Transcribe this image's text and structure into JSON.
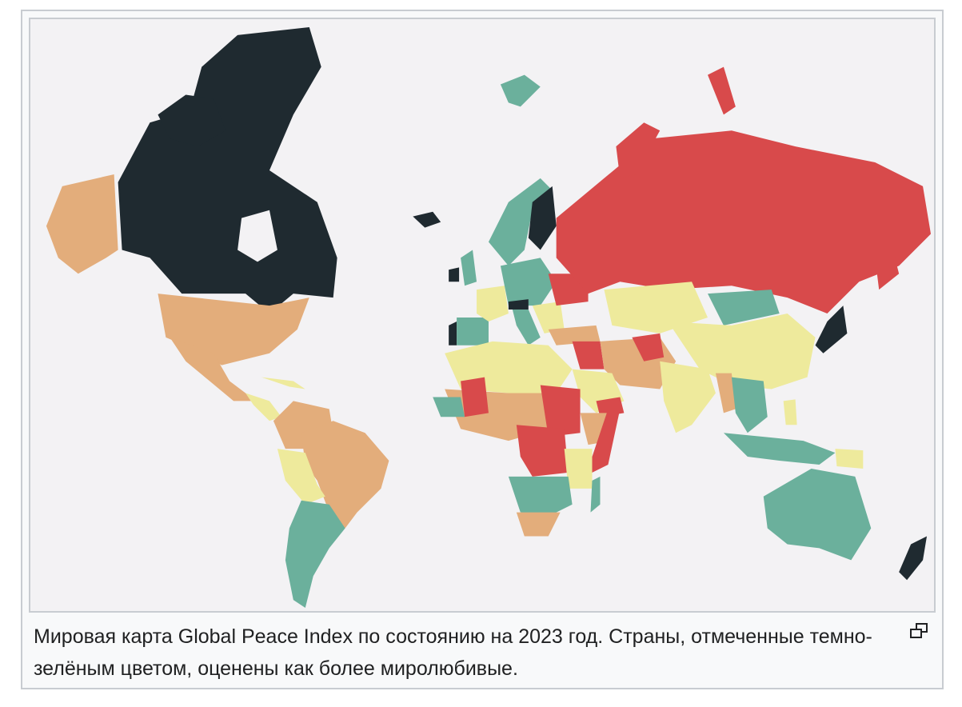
{
  "figure": {
    "caption": "Мировая карта Global Peace Index по состоянию на 2023 год. Страны, отмеченные темно-зелёным цветом, оценены как более миролюбивые.",
    "enlarge_icon": "enlarge-icon"
  },
  "map": {
    "projection": "world",
    "ocean_color": "#f3f2f4",
    "palette": {
      "very_high": "#1f2a30",
      "high": "#6bb09c",
      "medium": "#eeea9c",
      "low": "#e3ad7b",
      "very_low": "#d84a4b"
    },
    "regions": [
      {
        "name": "Canada",
        "level": "very_high"
      },
      {
        "name": "Alaska",
        "level": "low"
      },
      {
        "name": "Greenland",
        "level": "none"
      },
      {
        "name": "United States",
        "level": "low"
      },
      {
        "name": "Mexico",
        "level": "low"
      },
      {
        "name": "Central America",
        "level": "medium"
      },
      {
        "name": "Colombia",
        "level": "low"
      },
      {
        "name": "Venezuela",
        "level": "low"
      },
      {
        "name": "Brazil",
        "level": "low"
      },
      {
        "name": "Peru",
        "level": "medium"
      },
      {
        "name": "Bolivia",
        "level": "medium"
      },
      {
        "name": "Argentina",
        "level": "high"
      },
      {
        "name": "Chile",
        "level": "high"
      },
      {
        "name": "Uruguay",
        "level": "high"
      },
      {
        "name": "Iceland",
        "level": "very_high"
      },
      {
        "name": "Svalbard",
        "level": "high"
      },
      {
        "name": "Norway",
        "level": "high"
      },
      {
        "name": "Sweden",
        "level": "high"
      },
      {
        "name": "Finland",
        "level": "very_high"
      },
      {
        "name": "Ireland",
        "level": "very_high"
      },
      {
        "name": "United Kingdom",
        "level": "high"
      },
      {
        "name": "Portugal",
        "level": "very_high"
      },
      {
        "name": "Spain",
        "level": "high"
      },
      {
        "name": "France",
        "level": "medium"
      },
      {
        "name": "Germany",
        "level": "high"
      },
      {
        "name": "Austria",
        "level": "very_high"
      },
      {
        "name": "Italy",
        "level": "high"
      },
      {
        "name": "Balkans",
        "level": "medium"
      },
      {
        "name": "Ukraine",
        "level": "very_low"
      },
      {
        "name": "Russia",
        "level": "very_low"
      },
      {
        "name": "Turkey",
        "level": "low"
      },
      {
        "name": "Mongolia",
        "level": "high"
      },
      {
        "name": "China",
        "level": "medium"
      },
      {
        "name": "Kazakhstan",
        "level": "medium"
      },
      {
        "name": "Afghanistan",
        "level": "very_low"
      },
      {
        "name": "Syria/Iraq",
        "level": "very_low"
      },
      {
        "name": "Iran/Pakistan",
        "level": "low"
      },
      {
        "name": "India",
        "level": "medium"
      },
      {
        "name": "Myanmar",
        "level": "low"
      },
      {
        "name": "Southeast Asia",
        "level": "high"
      },
      {
        "name": "Japan",
        "level": "very_high"
      },
      {
        "name": "Indonesia",
        "level": "high"
      },
      {
        "name": "Papua New Guinea",
        "level": "medium"
      },
      {
        "name": "Australia",
        "level": "high"
      },
      {
        "name": "New Zealand",
        "level": "very_high"
      },
      {
        "name": "North Africa",
        "level": "medium"
      },
      {
        "name": "Sahel",
        "level": "low"
      },
      {
        "name": "Mali",
        "level": "very_low"
      },
      {
        "name": "Sudan",
        "level": "very_low"
      },
      {
        "name": "Central African Rep./DR Congo",
        "level": "very_low"
      },
      {
        "name": "Somalia",
        "level": "very_low"
      },
      {
        "name": "Yemen",
        "level": "very_low"
      },
      {
        "name": "Saudi Arabia",
        "level": "medium"
      },
      {
        "name": "Southern Africa",
        "level": "high"
      },
      {
        "name": "South Africa",
        "level": "low"
      },
      {
        "name": "Madagascar",
        "level": "high"
      },
      {
        "name": "Tanzania/Kenya",
        "level": "medium"
      }
    ]
  }
}
